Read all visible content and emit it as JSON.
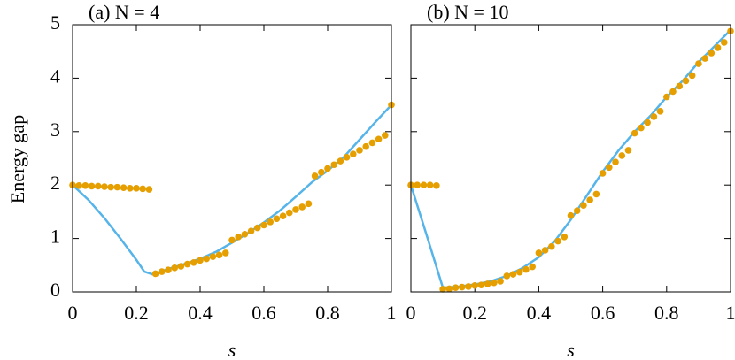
{
  "chart_data": [
    {
      "type": "line",
      "title": "(a)  N = 4",
      "ylabel": "Energy gap",
      "xlabel": "s",
      "xlim": [
        0,
        1
      ],
      "ylim": [
        0,
        5
      ],
      "xticks": [
        0,
        0.2,
        0.4,
        0.6,
        0.8,
        1
      ],
      "yticks": [
        0,
        1,
        2,
        3,
        4,
        5
      ],
      "ytick_labels": true,
      "series": [
        {
          "mark": "line",
          "color": "#56b4e9",
          "x": [
            0,
            0.05,
            0.1,
            0.15,
            0.2,
            0.225,
            0.25,
            0.3,
            0.35,
            0.4,
            0.45,
            0.5,
            0.55,
            0.6,
            0.65,
            0.7,
            0.75,
            0.8,
            0.85,
            0.9,
            0.95,
            1
          ],
          "values": [
            2.0,
            1.72,
            1.38,
            1.0,
            0.6,
            0.38,
            0.33,
            0.43,
            0.52,
            0.62,
            0.75,
            0.92,
            1.1,
            1.3,
            1.52,
            1.78,
            2.05,
            2.27,
            2.52,
            2.85,
            3.18,
            3.5
          ]
        },
        {
          "mark": "dot",
          "color": "#e69f00",
          "x": [
            0,
            0.02,
            0.04,
            0.06,
            0.08,
            0.1,
            0.12,
            0.14,
            0.16,
            0.18,
            0.2,
            0.22,
            0.24,
            0.26,
            0.28,
            0.3,
            0.32,
            0.34,
            0.36,
            0.38,
            0.4,
            0.42,
            0.44,
            0.46,
            0.48,
            0.5,
            0.52,
            0.54,
            0.56,
            0.58,
            0.6,
            0.62,
            0.64,
            0.66,
            0.68,
            0.7,
            0.72,
            0.74,
            0.76,
            0.78,
            0.8,
            0.82,
            0.84,
            0.86,
            0.88,
            0.9,
            0.92,
            0.94,
            0.96,
            0.98,
            1
          ],
          "values": [
            2.0,
            1.99,
            1.99,
            1.98,
            1.98,
            1.97,
            1.96,
            1.96,
            1.95,
            1.94,
            1.94,
            1.93,
            1.92,
            0.34,
            0.38,
            0.41,
            0.45,
            0.48,
            0.52,
            0.55,
            0.59,
            0.62,
            0.66,
            0.69,
            0.73,
            0.97,
            1.03,
            1.08,
            1.14,
            1.2,
            1.25,
            1.31,
            1.37,
            1.42,
            1.48,
            1.54,
            1.59,
            1.65,
            2.17,
            2.24,
            2.31,
            2.38,
            2.45,
            2.52,
            2.58,
            2.65,
            2.72,
            2.79,
            2.86,
            2.93,
            3.5
          ]
        }
      ]
    },
    {
      "type": "line",
      "title": "(b)  N = 10",
      "xlabel": "s",
      "xlim": [
        0,
        1
      ],
      "ylim": [
        0,
        5
      ],
      "xticks": [
        0,
        0.2,
        0.4,
        0.6,
        0.8,
        1
      ],
      "yticks": [
        0,
        1,
        2,
        3,
        4,
        5
      ],
      "ytick_labels": false,
      "series": [
        {
          "mark": "line",
          "color": "#56b4e9",
          "x": [
            0,
            0.05,
            0.1,
            0.15,
            0.2,
            0.25,
            0.3,
            0.35,
            0.4,
            0.45,
            0.5,
            0.55,
            0.6,
            0.65,
            0.7,
            0.75,
            0.8,
            0.85,
            0.9,
            0.95,
            1
          ],
          "values": [
            2.0,
            1.05,
            0.08,
            0.1,
            0.14,
            0.2,
            0.3,
            0.45,
            0.65,
            0.95,
            1.35,
            1.8,
            2.25,
            2.65,
            3.0,
            3.3,
            3.65,
            3.95,
            4.3,
            4.6,
            4.9
          ]
        },
        {
          "mark": "dot",
          "color": "#e69f00",
          "x": [
            0,
            0.02,
            0.04,
            0.06,
            0.08,
            0.1,
            0.12,
            0.14,
            0.16,
            0.18,
            0.2,
            0.22,
            0.24,
            0.26,
            0.28,
            0.3,
            0.32,
            0.34,
            0.36,
            0.38,
            0.4,
            0.42,
            0.44,
            0.46,
            0.48,
            0.5,
            0.52,
            0.54,
            0.56,
            0.58,
            0.6,
            0.62,
            0.64,
            0.66,
            0.68,
            0.7,
            0.72,
            0.74,
            0.76,
            0.78,
            0.8,
            0.82,
            0.84,
            0.86,
            0.88,
            0.9,
            0.92,
            0.94,
            0.96,
            0.98,
            1
          ],
          "values": [
            2.0,
            2.0,
            2.0,
            2.0,
            1.99,
            0.05,
            0.06,
            0.08,
            0.09,
            0.1,
            0.12,
            0.13,
            0.15,
            0.17,
            0.2,
            0.3,
            0.33,
            0.37,
            0.42,
            0.47,
            0.73,
            0.78,
            0.85,
            0.95,
            1.03,
            1.43,
            1.52,
            1.62,
            1.72,
            1.83,
            2.22,
            2.33,
            2.43,
            2.55,
            2.65,
            2.97,
            3.07,
            3.17,
            3.28,
            3.38,
            3.65,
            3.75,
            3.85,
            3.95,
            4.05,
            4.27,
            4.37,
            4.47,
            4.57,
            4.67,
            4.88
          ]
        }
      ]
    }
  ]
}
